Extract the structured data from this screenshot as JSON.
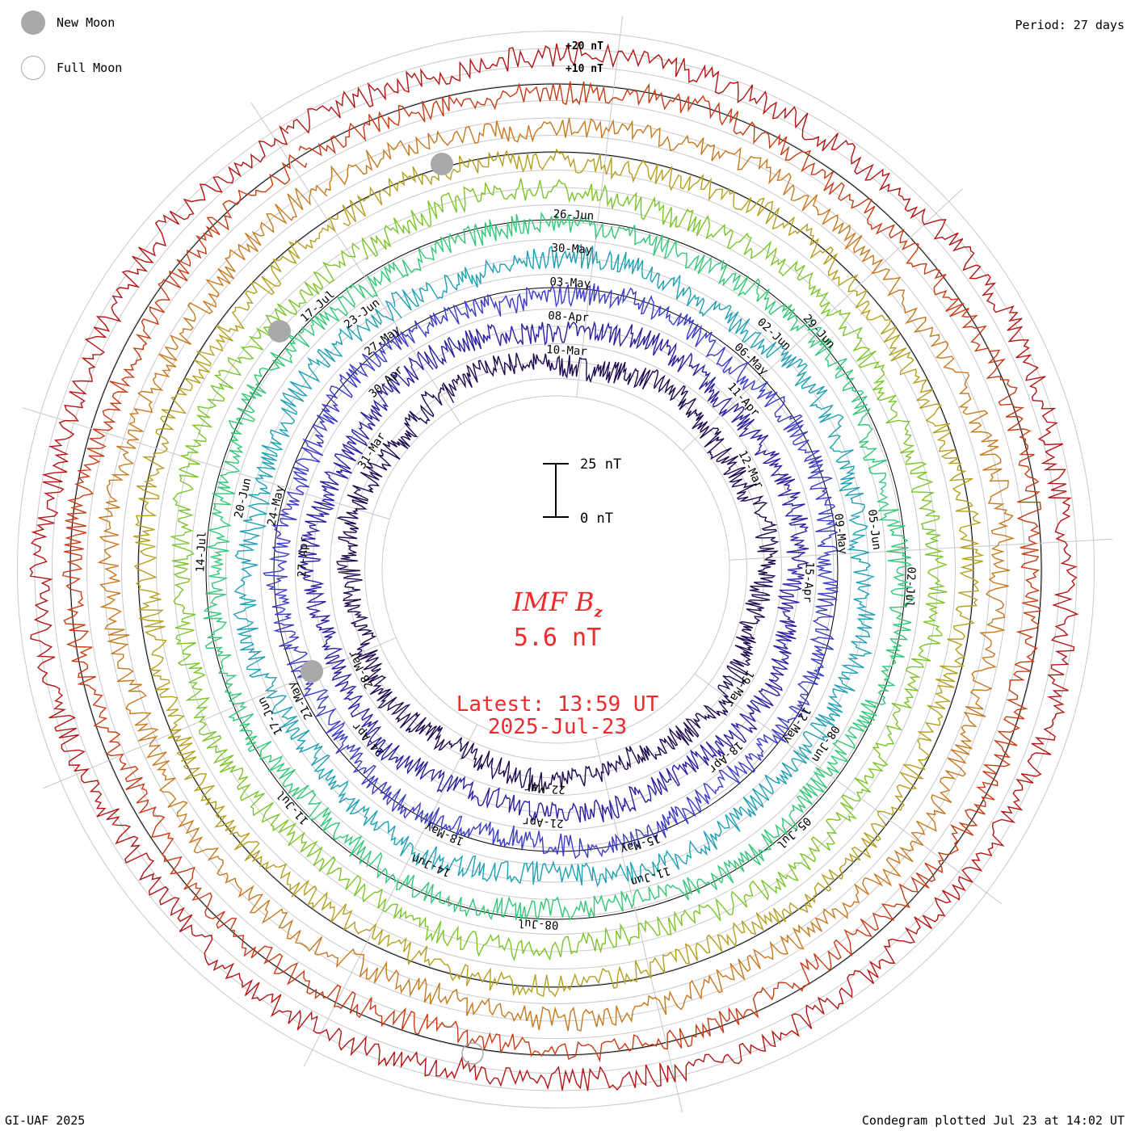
{
  "legend": {
    "new_moon_label": "New Moon",
    "full_moon_label": "Full Moon",
    "new_moon_color": "#a9a9a9",
    "full_moon_color": "#a9a9a9"
  },
  "period_label": "Period: 27 days",
  "footer": {
    "credit": "GI-UAF 2025",
    "plotted": "Condegram plotted Jul 23 at 14:02 UT"
  },
  "center": {
    "title_main": "IMF B",
    "title_sub": "z",
    "value": "5.6 nT",
    "latest_line1": "Latest: 13:59 UT",
    "latest_line2": "2025-Jul-23",
    "text_color": "#ee2a2a"
  },
  "chart_data": {
    "type": "line",
    "subtype": "condegram (spiral time series)",
    "quantity": "IMF Bz",
    "units": "nT",
    "period_days": 27,
    "ring_ticks": [
      "+20 nT",
      "+10 nT"
    ],
    "scale_bar": {
      "top_label": "25 nT",
      "bottom_label": "0 nT"
    },
    "revolutions": [
      {
        "index": 1,
        "color": "#1e0a50",
        "date_labels": [
          "10-Mar",
          "12-Mar",
          "19-Mar",
          "22-Mar",
          "28-Mar",
          "31-Mar"
        ]
      },
      {
        "index": 2,
        "color": "#2a1fa0",
        "date_labels": [
          "08-Apr",
          "11-Apr",
          "15-Apr",
          "18-Apr",
          "21-Apr",
          "24-Apr",
          "27-Apr",
          "30-Apr"
        ]
      },
      {
        "index": 3,
        "color": "#3c3cc8",
        "date_labels": [
          "03-May",
          "06-May",
          "09-May",
          "12-May",
          "15-May",
          "18-May",
          "21-May",
          "24-May",
          "27-May"
        ]
      },
      {
        "index": 4,
        "color": "#1fa0b4",
        "date_labels": [
          "30-May",
          "02-Jun",
          "05-Jun",
          "08-Jun",
          "11-Jun",
          "14-Jun",
          "17-Jun",
          "20-Jun",
          "23-Jun"
        ]
      },
      {
        "index": 5,
        "color": "#32c878",
        "date_labels": [
          "26-Jun",
          "29-Jun",
          "02-Jul",
          "05-Jul",
          "08-Jul",
          "11-Jul",
          "14-Jul",
          "17-Jul"
        ]
      },
      {
        "index": 6,
        "color": "#7cc42a",
        "date_labels": []
      },
      {
        "index": 7,
        "color": "#b4a01e",
        "date_labels": []
      },
      {
        "index": 8,
        "color": "#c8781e",
        "date_labels": []
      },
      {
        "index": 9,
        "color": "#c83c14",
        "date_labels": []
      },
      {
        "index": 10,
        "color": "#b41414",
        "date_labels": []
      }
    ],
    "latest_value": 5.6,
    "latest_time": "2025-Jul-23 13:59 UT"
  }
}
